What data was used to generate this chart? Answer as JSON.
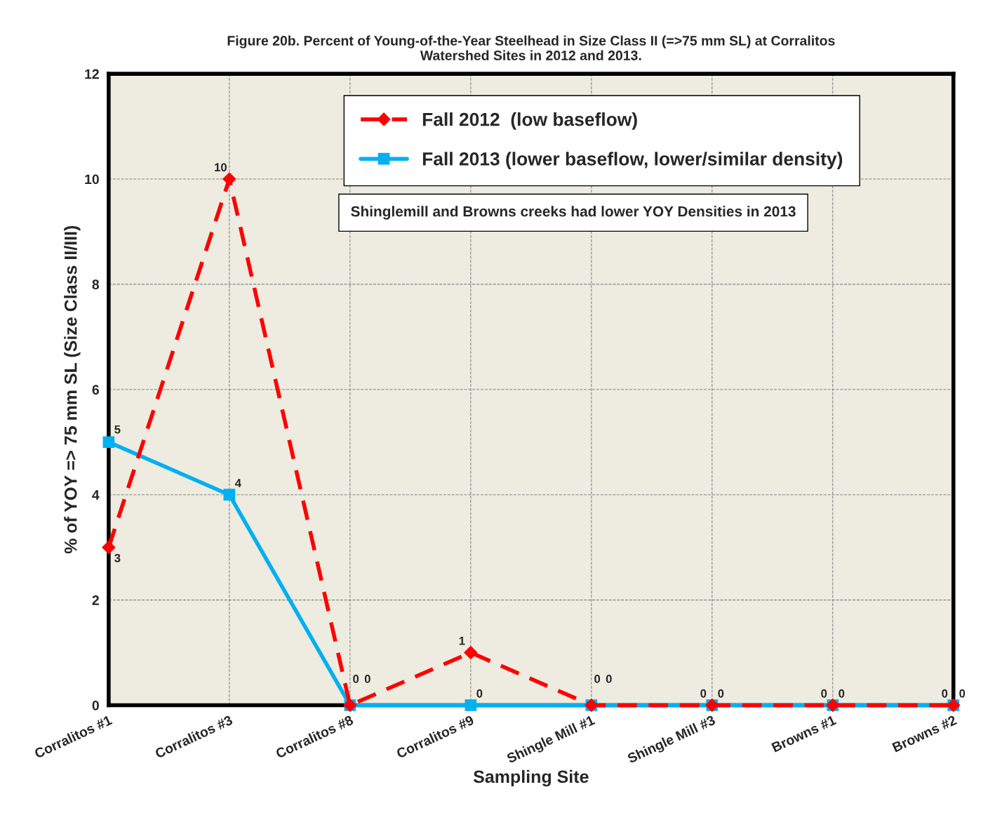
{
  "chart_data": {
    "type": "line",
    "title": "Figure 20b. Percent of Young-of-the-Year Steelhead in Size Class II (=>75 mm SL) at Corralitos\nWatershed Sites in 2012 and 2013.",
    "xlabel": "Sampling Site",
    "ylabel": "% of YOY => 75 mm SL (Size Class II/III)",
    "categories": [
      "Corralitos #1",
      "Corralitos #3",
      "Corralitos #8",
      "Corralitos #9",
      "Shingle Mill #1",
      "Shingle Mill #3",
      "Browns #1",
      "Browns #2"
    ],
    "series": [
      {
        "name": "Fall 2012  (low baseflow)",
        "color": "#ff0000",
        "marker": "diamond",
        "line_style": "dashed",
        "values": [
          3,
          10,
          0,
          1,
          0,
          0,
          0,
          0
        ]
      },
      {
        "name": "Fall 2013 (lower baseflow, lower/similar density)",
        "color": "#00b0f0",
        "marker": "square",
        "line_style": "solid",
        "values": [
          5,
          4,
          0,
          0,
          0,
          0,
          0,
          0
        ]
      }
    ],
    "ylim": [
      0,
      12
    ],
    "yticks": [
      0,
      2,
      4,
      6,
      8,
      10,
      12
    ],
    "grid": true,
    "legend": "top right",
    "data_labels": true,
    "annotations": [
      "Shinglemill and Browns creeks had lower YOY Densities in 2013"
    ]
  }
}
